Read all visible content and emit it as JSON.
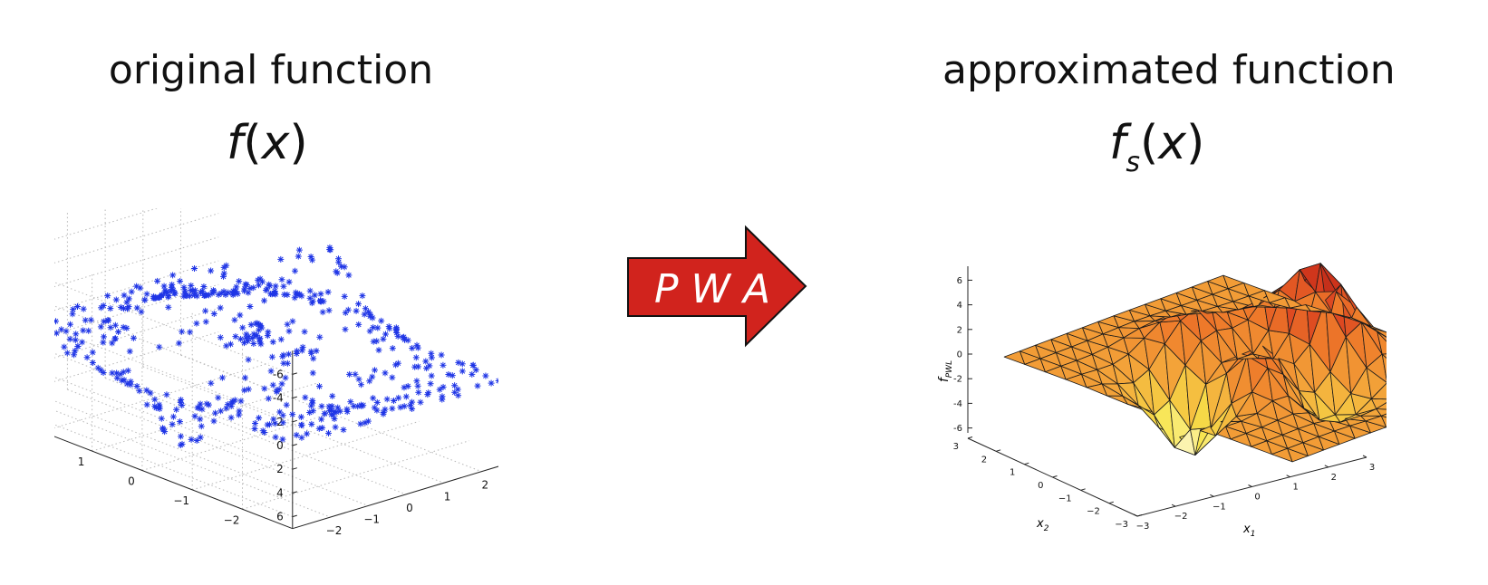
{
  "left": {
    "title": "original function",
    "formula": {
      "fn": "f",
      "arg": "x"
    },
    "z_ticks": [
      "6",
      "4",
      "2",
      "0",
      "-2",
      "-4",
      "-6"
    ],
    "y_ticks": [
      "2",
      "1",
      "0",
      "−1",
      "−2"
    ],
    "x_ticks": [
      "−2",
      "−1",
      "0",
      "1",
      "2"
    ],
    "marker_color": "#1f35e6"
  },
  "arrow": {
    "label": "P W A",
    "fill": "#d1231d"
  },
  "right": {
    "title": "approximated function",
    "formula": {
      "fn": "f",
      "sub": "s",
      "arg": "x"
    },
    "z_label": "f",
    "z_label_sub": "PWL",
    "z_ticks": [
      "6",
      "4",
      "2",
      "0",
      "-2",
      "-4",
      "-6"
    ],
    "y_ticks": [
      "3",
      "2",
      "1",
      "0",
      "−1",
      "−2",
      "−3"
    ],
    "x_ticks": [
      "−3",
      "−2",
      "−1",
      "0",
      "1",
      "2",
      "3"
    ],
    "x_label": "x",
    "x_label_sub": "1",
    "y_label": "x",
    "y_label_sub": "2",
    "colormap": [
      "#9c1a10",
      "#d83a1e",
      "#ee7a2a",
      "#f3a63a",
      "#f7e44a",
      "#ffffff"
    ]
  }
}
